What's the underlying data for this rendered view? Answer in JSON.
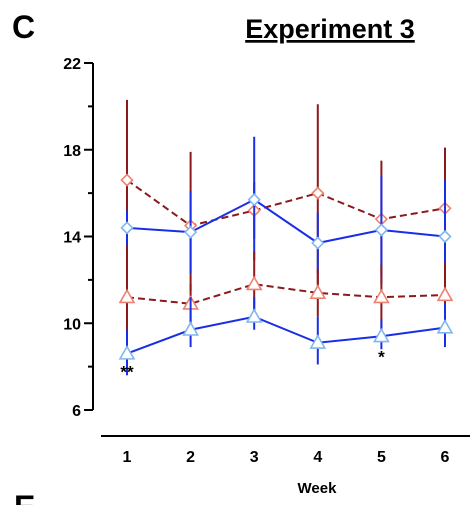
{
  "chart_data": {
    "type": "line",
    "panel_letter": "C",
    "next_panel_letter": "E",
    "title": "Experiment 3",
    "xlabel": "Week",
    "ylabel": "",
    "x": [
      1,
      2,
      3,
      4,
      5,
      6
    ],
    "xlim": [
      1,
      6
    ],
    "ylim": [
      6,
      22
    ],
    "yticks": [
      6,
      10,
      14,
      18,
      22
    ],
    "grid": false,
    "series": [
      {
        "color": "#8b1a1a",
        "marker": "diamond",
        "marker_color": "#f08070",
        "dashed": true,
        "values": [
          16.6,
          14.5,
          15.2,
          16.0,
          14.8,
          15.3
        ],
        "err_high": [
          20.3,
          17.9,
          16.5,
          20.1,
          17.5,
          18.1
        ],
        "err_low": [
          13.0,
          11.5,
          13.9,
          11.8,
          12.2,
          12.6
        ]
      },
      {
        "color": "#1a2ee6",
        "marker": "diamond",
        "marker_color": "#7fb7f0",
        "dashed": false,
        "values": [
          14.4,
          14.2,
          15.7,
          13.7,
          14.3,
          14.0
        ],
        "err_high": [
          15.2,
          16.1,
          18.6,
          15.1,
          16.8,
          16.6
        ],
        "err_low": [
          13.6,
          12.3,
          12.9,
          12.3,
          11.8,
          11.4
        ]
      },
      {
        "color": "#8b1a1a",
        "marker": "triangle",
        "marker_color": "#f08070",
        "dashed": true,
        "values": [
          11.2,
          10.9,
          11.8,
          11.4,
          11.2,
          11.3
        ],
        "err_high": [
          13.6,
          11.8,
          13.3,
          12.5,
          12.7,
          12.8
        ],
        "err_low": [
          8.8,
          10.0,
          10.3,
          10.3,
          9.7,
          9.8
        ]
      },
      {
        "color": "#1a2ee6",
        "marker": "triangle",
        "marker_color": "#7fb7f0",
        "dashed": false,
        "values": [
          8.6,
          9.7,
          10.3,
          9.1,
          9.4,
          9.8
        ],
        "err_high": [
          9.7,
          11.2,
          11.2,
          10.3,
          10.2,
          10.9
        ],
        "err_low": [
          7.6,
          8.9,
          9.7,
          8.1,
          8.8,
          8.9
        ]
      }
    ],
    "annotations": [
      {
        "text": "**",
        "x": 1,
        "y": 7.5
      },
      {
        "text": "*",
        "x": 5,
        "y": 8.2
      }
    ]
  }
}
